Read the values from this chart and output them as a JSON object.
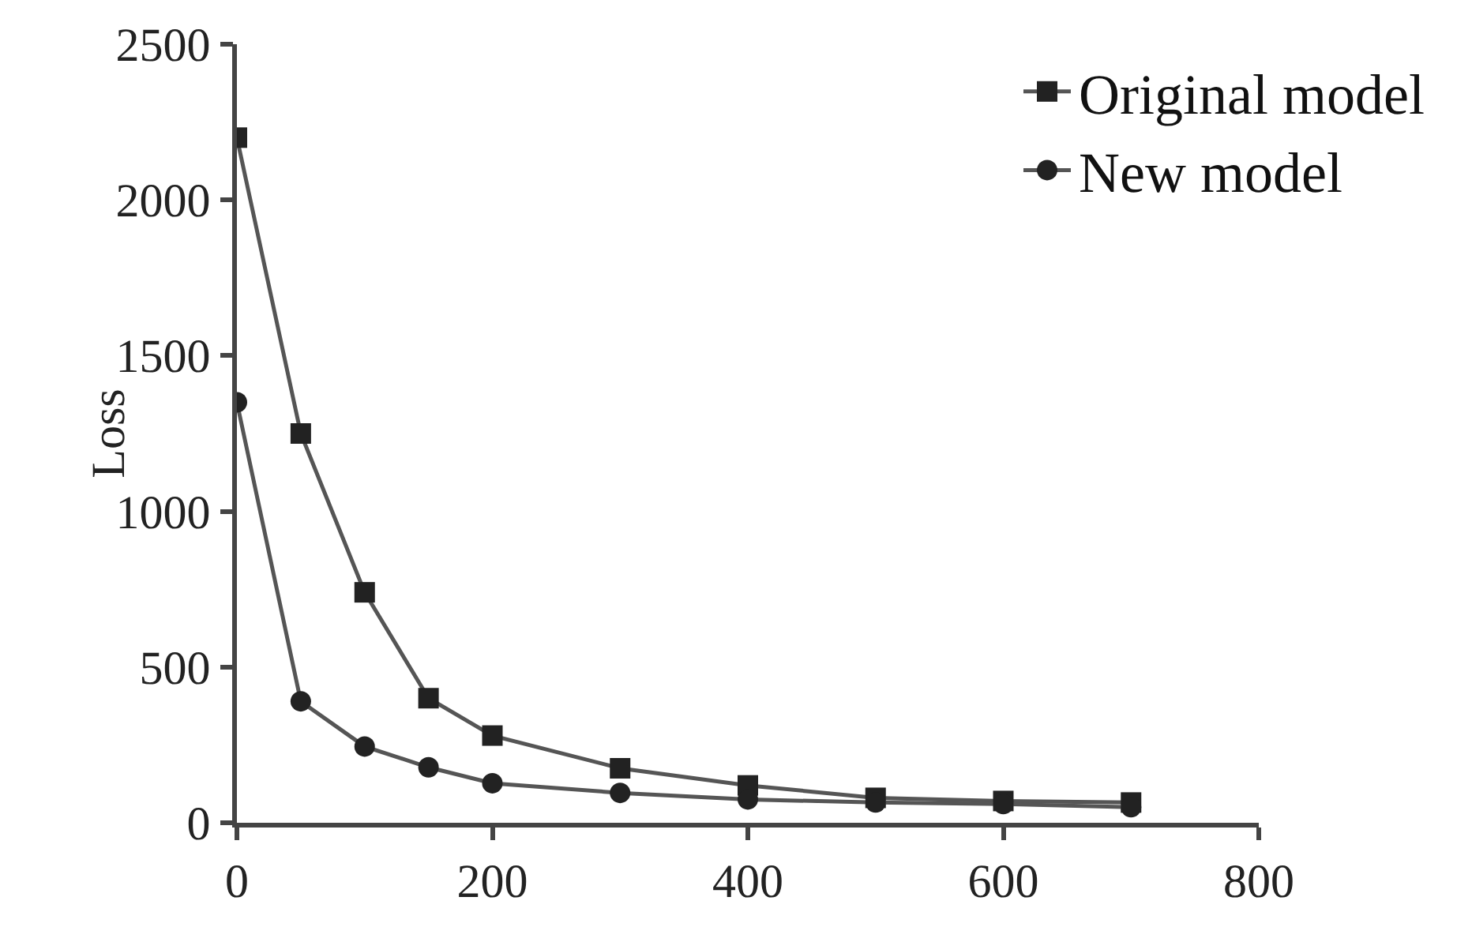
{
  "chart_data": {
    "type": "line",
    "ylabel": "Loss",
    "x": [
      0,
      50,
      100,
      150,
      200,
      300,
      400,
      500,
      600,
      700
    ],
    "series": [
      {
        "name": "Original model",
        "color": "#222222",
        "marker": "square",
        "values": [
          2200,
          1250,
          740,
          400,
          280,
          175,
          120,
          80,
          70,
          65
        ]
      },
      {
        "name": "New model",
        "color": "#222222",
        "marker": "circle",
        "values": [
          1350,
          390,
          245,
          178,
          127,
          96,
          75,
          65,
          60,
          50
        ]
      }
    ],
    "xlim": [
      0,
      800
    ],
    "xticks": [
      0,
      200,
      400,
      600,
      800
    ],
    "ylim": [
      0,
      2500
    ],
    "yticks": [
      0,
      500,
      1000,
      1500,
      2000,
      2500
    ],
    "grid": false,
    "legend": "top right",
    "line_style": "solid"
  }
}
